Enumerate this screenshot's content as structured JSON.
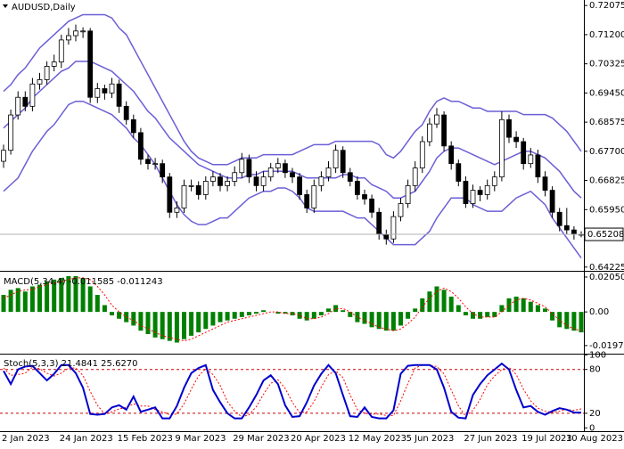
{
  "chart_data": [
    {
      "type": "candlestick",
      "title": "AUDUSD,Daily",
      "categories": [
        "2 Jan 2023",
        null,
        null,
        null,
        null,
        null,
        null,
        null,
        "24 Jan 2023",
        null,
        null,
        null,
        null,
        null,
        null,
        null,
        "15 Feb 2023",
        null,
        null,
        null,
        null,
        null,
        null,
        null,
        "9 Mar 2023",
        null,
        null,
        null,
        null,
        null,
        null,
        null,
        "29 Mar 2023",
        null,
        null,
        null,
        null,
        null,
        null,
        null,
        "20 Apr 2023",
        null,
        null,
        null,
        null,
        null,
        null,
        null,
        "12 May 2023",
        null,
        null,
        null,
        null,
        null,
        null,
        null,
        "5 Jun 2023",
        null,
        null,
        null,
        null,
        null,
        null,
        null,
        "27 Jun 2023",
        null,
        null,
        null,
        null,
        null,
        null,
        null,
        "19 Jul 2023",
        null,
        null,
        null,
        null,
        null,
        null,
        null,
        "10 Aug 2023"
      ],
      "open": [
        0.674,
        0.6773,
        0.6879,
        0.6932,
        0.6905,
        0.6972,
        0.6985,
        0.7025,
        0.7038,
        0.7104,
        0.7117,
        0.7131,
        0.7131,
        0.6932,
        0.6958,
        0.6945,
        0.6972,
        0.6905,
        0.6865,
        0.6826,
        0.6746,
        0.6733,
        0.6733,
        0.6693,
        0.6587,
        0.66,
        0.6667,
        0.6667,
        0.664,
        0.668,
        0.6693,
        0.6667,
        0.668,
        0.6706,
        0.6746,
        0.6693,
        0.6667,
        0.6693,
        0.672,
        0.6733,
        0.6706,
        0.6693,
        0.664,
        0.66,
        0.6667,
        0.6693,
        0.672,
        0.6773,
        0.6706,
        0.668,
        0.664,
        0.6627,
        0.6587,
        0.6521,
        0.6507,
        0.6574,
        0.6613,
        0.6667,
        0.672,
        0.6799,
        0.6852,
        0.6879,
        0.6786,
        0.6733,
        0.668,
        0.6613,
        0.6653,
        0.664,
        0.6667,
        0.6693,
        0.6865,
        0.6812,
        0.6799,
        0.6733,
        0.6759,
        0.6693,
        0.6653,
        0.6587,
        0.6547,
        0.6534,
        0.6521
      ],
      "high": [
        0.679,
        0.6895,
        0.695,
        0.695,
        0.699,
        0.7005,
        0.704,
        0.706,
        0.712,
        0.714,
        0.715,
        0.7142,
        0.714,
        0.6975,
        0.697,
        0.699,
        0.6985,
        0.692,
        0.688,
        0.684,
        0.676,
        0.675,
        0.6745,
        0.6705,
        0.662,
        0.6685,
        0.6685,
        0.668,
        0.6695,
        0.671,
        0.6705,
        0.6695,
        0.6725,
        0.6765,
        0.676,
        0.671,
        0.671,
        0.6735,
        0.675,
        0.6745,
        0.672,
        0.6705,
        0.6655,
        0.6685,
        0.671,
        0.674,
        0.679,
        0.6785,
        0.672,
        0.6695,
        0.6655,
        0.664,
        0.66,
        0.6535,
        0.659,
        0.663,
        0.6685,
        0.674,
        0.6815,
        0.687,
        0.69,
        0.689,
        0.68,
        0.6745,
        0.6695,
        0.667,
        0.6665,
        0.6685,
        0.671,
        0.689,
        0.688,
        0.683,
        0.681,
        0.678,
        0.6775,
        0.671,
        0.6665,
        0.66,
        0.66,
        0.6545,
        0.653
      ],
      "low": [
        0.672,
        0.676,
        0.6865,
        0.689,
        0.689,
        0.6955,
        0.697,
        0.701,
        0.702,
        0.709,
        0.71,
        0.711,
        0.6915,
        0.6915,
        0.6925,
        0.693,
        0.6885,
        0.685,
        0.681,
        0.673,
        0.6715,
        0.6715,
        0.6675,
        0.657,
        0.657,
        0.6585,
        0.665,
        0.6625,
        0.6625,
        0.6665,
        0.665,
        0.665,
        0.6665,
        0.669,
        0.6675,
        0.665,
        0.665,
        0.668,
        0.6705,
        0.669,
        0.6675,
        0.6625,
        0.6585,
        0.6585,
        0.665,
        0.668,
        0.6705,
        0.669,
        0.6665,
        0.6625,
        0.661,
        0.657,
        0.6505,
        0.649,
        0.6495,
        0.656,
        0.66,
        0.665,
        0.6705,
        0.6785,
        0.684,
        0.677,
        0.6715,
        0.6665,
        0.66,
        0.66,
        0.662,
        0.6625,
        0.665,
        0.668,
        0.6795,
        0.678,
        0.6715,
        0.672,
        0.6675,
        0.6635,
        0.657,
        0.653,
        0.652,
        0.6505,
        0.6512
      ],
      "close": [
        0.6773,
        0.6879,
        0.6932,
        0.6905,
        0.6972,
        0.6985,
        0.7025,
        0.7038,
        0.7104,
        0.7117,
        0.7131,
        0.7131,
        0.6932,
        0.6958,
        0.6945,
        0.6972,
        0.6905,
        0.6865,
        0.6826,
        0.6746,
        0.6733,
        0.6733,
        0.6693,
        0.6587,
        0.66,
        0.6667,
        0.6667,
        0.664,
        0.668,
        0.6693,
        0.6667,
        0.668,
        0.6706,
        0.6746,
        0.6693,
        0.6667,
        0.6693,
        0.672,
        0.6733,
        0.6706,
        0.6693,
        0.664,
        0.66,
        0.6667,
        0.6693,
        0.672,
        0.6773,
        0.6706,
        0.668,
        0.664,
        0.6627,
        0.6587,
        0.6521,
        0.6507,
        0.6574,
        0.6613,
        0.6667,
        0.672,
        0.6799,
        0.6852,
        0.6879,
        0.6786,
        0.6733,
        0.668,
        0.6613,
        0.6653,
        0.664,
        0.6667,
        0.6693,
        0.6865,
        0.6812,
        0.6799,
        0.6733,
        0.6759,
        0.6693,
        0.6653,
        0.6587,
        0.6547,
        0.6534,
        0.6521,
        0.6521
      ],
      "upper_band": [
        0.695,
        0.697,
        0.7,
        0.702,
        0.705,
        0.708,
        0.71,
        0.712,
        0.714,
        0.716,
        0.717,
        0.718,
        0.718,
        0.718,
        0.718,
        0.717,
        0.714,
        0.712,
        0.708,
        0.704,
        0.7,
        0.696,
        0.692,
        0.688,
        0.684,
        0.68,
        0.677,
        0.675,
        0.674,
        0.673,
        0.673,
        0.673,
        0.674,
        0.675,
        0.675,
        0.675,
        0.676,
        0.676,
        0.676,
        0.676,
        0.676,
        0.677,
        0.678,
        0.679,
        0.679,
        0.679,
        0.68,
        0.68,
        0.68,
        0.68,
        0.68,
        0.68,
        0.679,
        0.676,
        0.675,
        0.677,
        0.68,
        0.683,
        0.685,
        0.689,
        0.692,
        0.693,
        0.692,
        0.692,
        0.691,
        0.69,
        0.69,
        0.689,
        0.689,
        0.689,
        0.689,
        0.689,
        0.688,
        0.688,
        0.688,
        0.688,
        0.687,
        0.685,
        0.683,
        0.68,
        0.677
      ],
      "middle_band": [
        0.684,
        0.686,
        0.688,
        0.69,
        0.693,
        0.695,
        0.697,
        0.699,
        0.701,
        0.702,
        0.704,
        0.704,
        0.704,
        0.703,
        0.702,
        0.701,
        0.699,
        0.697,
        0.695,
        0.692,
        0.689,
        0.687,
        0.684,
        0.681,
        0.679,
        0.677,
        0.675,
        0.673,
        0.672,
        0.671,
        0.67,
        0.669,
        0.669,
        0.669,
        0.67,
        0.67,
        0.671,
        0.671,
        0.671,
        0.671,
        0.671,
        0.67,
        0.669,
        0.669,
        0.669,
        0.669,
        0.669,
        0.67,
        0.67,
        0.669,
        0.669,
        0.667,
        0.666,
        0.665,
        0.663,
        0.663,
        0.664,
        0.665,
        0.668,
        0.671,
        0.675,
        0.677,
        0.678,
        0.678,
        0.677,
        0.676,
        0.675,
        0.674,
        0.673,
        0.674,
        0.675,
        0.676,
        0.677,
        0.677,
        0.676,
        0.675,
        0.673,
        0.671,
        0.668,
        0.665,
        0.663
      ],
      "lower_band": [
        0.665,
        0.667,
        0.669,
        0.673,
        0.677,
        0.68,
        0.683,
        0.685,
        0.688,
        0.691,
        0.692,
        0.692,
        0.691,
        0.69,
        0.689,
        0.688,
        0.686,
        0.684,
        0.681,
        0.679,
        0.676,
        0.673,
        0.669,
        0.665,
        0.661,
        0.658,
        0.656,
        0.655,
        0.655,
        0.656,
        0.657,
        0.657,
        0.659,
        0.661,
        0.663,
        0.664,
        0.665,
        0.665,
        0.666,
        0.666,
        0.665,
        0.663,
        0.66,
        0.659,
        0.659,
        0.659,
        0.659,
        0.659,
        0.658,
        0.657,
        0.657,
        0.655,
        0.653,
        0.651,
        0.649,
        0.649,
        0.649,
        0.649,
        0.651,
        0.653,
        0.657,
        0.66,
        0.663,
        0.663,
        0.663,
        0.661,
        0.66,
        0.659,
        0.659,
        0.659,
        0.661,
        0.663,
        0.664,
        0.665,
        0.663,
        0.661,
        0.657,
        0.654,
        0.651,
        0.648,
        0.645
      ],
      "band_color": "#6b5fd6",
      "up_color": "#ffffff",
      "down_color": "#000000",
      "last_price": 0.65208,
      "ylim": [
        0.6414,
        0.7224
      ],
      "yticks": [
        0.72075,
        {
          "value": 0.712,
          "label": "0.71200"
        },
        0.70325,
        {
          "value": 0.6945,
          "label": "0.69450"
        },
        0.68575,
        {
          "value": 0.677,
          "label": "0.67700"
        },
        0.66825,
        {
          "value": 0.6595,
          "label": "0.65950"
        },
        0.64225
      ]
    },
    {
      "type": "macd",
      "title": "MACD(5,34,4) -0.011585 -0.011243",
      "values": [
        0.01,
        0.013,
        0.014,
        0.012,
        0.015,
        0.016,
        0.018,
        0.019,
        0.02,
        0.021,
        0.021,
        0.02,
        0.015,
        0.01,
        0.004,
        -0.002,
        -0.004,
        -0.006,
        -0.008,
        -0.011,
        -0.013,
        -0.015,
        -0.016,
        -0.017,
        -0.018,
        -0.016,
        -0.014,
        -0.012,
        -0.01,
        -0.008,
        -0.006,
        -0.005,
        -0.004,
        -0.003,
        -0.002,
        -0.001,
        0.001,
        0.0,
        -0.001,
        -0.001,
        -0.002,
        -0.004,
        -0.005,
        -0.004,
        -0.002,
        0.002,
        0.004,
        0.001,
        -0.003,
        -0.006,
        -0.007,
        -0.009,
        -0.01,
        -0.011,
        -0.011,
        -0.008,
        -0.004,
        0.002,
        0.008,
        0.012,
        0.015,
        0.013,
        0.009,
        0.004,
        -0.002,
        -0.004,
        -0.004,
        -0.003,
        -0.003,
        0.004,
        0.008,
        0.009,
        0.008,
        0.006,
        0.004,
        0.002,
        -0.005,
        -0.009,
        -0.01,
        -0.011,
        -0.012
      ],
      "signal": [
        0.008,
        0.01,
        0.012,
        0.013,
        0.013,
        0.015,
        0.016,
        0.017,
        0.018,
        0.019,
        0.02,
        0.02,
        0.019,
        0.015,
        0.01,
        0.004,
        0.0,
        -0.003,
        -0.005,
        -0.008,
        -0.01,
        -0.012,
        -0.014,
        -0.015,
        -0.016,
        -0.017,
        -0.016,
        -0.014,
        -0.012,
        -0.01,
        -0.008,
        -0.006,
        -0.005,
        -0.004,
        -0.003,
        -0.002,
        -0.001,
        0.0,
        0.0,
        -0.001,
        -0.001,
        -0.002,
        -0.004,
        -0.004,
        -0.003,
        -0.001,
        0.002,
        0.002,
        0.0,
        -0.003,
        -0.005,
        -0.007,
        -0.009,
        -0.01,
        -0.011,
        -0.01,
        -0.007,
        -0.003,
        0.003,
        0.008,
        0.012,
        0.014,
        0.012,
        0.008,
        0.003,
        -0.001,
        -0.003,
        -0.003,
        -0.003,
        0.0,
        0.004,
        0.007,
        0.008,
        0.007,
        0.005,
        0.003,
        -0.001,
        -0.005,
        -0.008,
        -0.01,
        -0.011
      ],
      "color": "#008000",
      "signal_color": "#ff0000",
      "ylim": [
        -0.024,
        0.0231
      ],
      "yticks": [
        0.020502,
        {
          "value": 0,
          "label": "0.00"
        },
        -0.019756
      ]
    },
    {
      "type": "stochastic",
      "title": "Stoch(5,3,3) 21.4841 25.6270",
      "main": [
        78,
        60,
        80,
        84,
        85,
        75,
        65,
        74,
        86,
        86,
        75,
        55,
        19,
        18,
        19,
        28,
        31,
        25,
        43,
        22,
        25,
        28,
        13,
        13,
        30,
        55,
        75,
        82,
        86,
        52,
        35,
        20,
        13,
        13,
        28,
        45,
        65,
        72,
        60,
        31,
        15,
        16,
        35,
        58,
        74,
        86,
        75,
        45,
        16,
        15,
        28,
        15,
        13,
        13,
        24,
        74,
        85,
        86,
        86,
        86,
        80,
        55,
        22,
        14,
        13,
        45,
        60,
        72,
        80,
        88,
        80,
        52,
        28,
        30,
        22,
        18,
        23,
        27,
        25,
        21,
        21
      ],
      "signal": [
        82,
        72,
        73,
        75,
        83,
        81,
        75,
        71,
        75,
        82,
        82,
        72,
        50,
        31,
        19,
        22,
        26,
        28,
        33,
        30,
        30,
        25,
        22,
        18,
        19,
        33,
        53,
        71,
        81,
        73,
        58,
        36,
        23,
        15,
        18,
        29,
        46,
        61,
        66,
        54,
        35,
        21,
        22,
        36,
        56,
        73,
        78,
        69,
        45,
        25,
        20,
        19,
        19,
        17,
        17,
        37,
        61,
        82,
        86,
        86,
        84,
        74,
        52,
        30,
        16,
        24,
        39,
        59,
        71,
        80,
        83,
        73,
        53,
        37,
        27,
        23,
        21,
        23,
        25,
        24,
        26
      ],
      "main_color": "#0000cd",
      "signal_color": "#ff0000",
      "levels": [
        80,
        20
      ],
      "level_color": "#cc0000",
      "ylim": [
        -3.3,
        100.4
      ],
      "yticks": [
        100,
        80,
        20,
        0
      ]
    }
  ]
}
